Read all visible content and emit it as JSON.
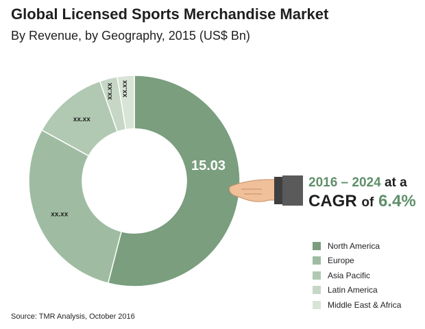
{
  "header": {
    "title": "Global Licensed Sports Merchandise Market",
    "subtitle": "By Revenue, by Geography, 2015 (US$ Bn)"
  },
  "chart_data": {
    "type": "pie",
    "title": "Global Licensed Sports Merchandise Market",
    "subtitle": "By Revenue, by Geography, 2015 (US$ Bn)",
    "series": [
      {
        "name": "North America",
        "label": "15.03",
        "share": 0.54,
        "color": "#7a9e7e"
      },
      {
        "name": "Europe",
        "label": "xx.xx",
        "share": 0.29,
        "color": "#9fbca2"
      },
      {
        "name": "Asia Pacific",
        "label": "xx.xx",
        "share": 0.117,
        "color": "#b1c9b2"
      },
      {
        "name": "Latin America",
        "label": "xx.xx",
        "share": 0.027,
        "color": "#c6d7c5"
      },
      {
        "name": "Middle East & Africa",
        "label": "xx.xx",
        "share": 0.026,
        "color": "#d8e4d6"
      }
    ],
    "legend_position": "bottom-right"
  },
  "callout": {
    "period": "2016 – 2024",
    "at_a": "at a",
    "cagr_word": "CAGR",
    "of_word": "of",
    "cagr_value": "6.4%"
  },
  "source": "Source: TMR Analysis, October 2016"
}
